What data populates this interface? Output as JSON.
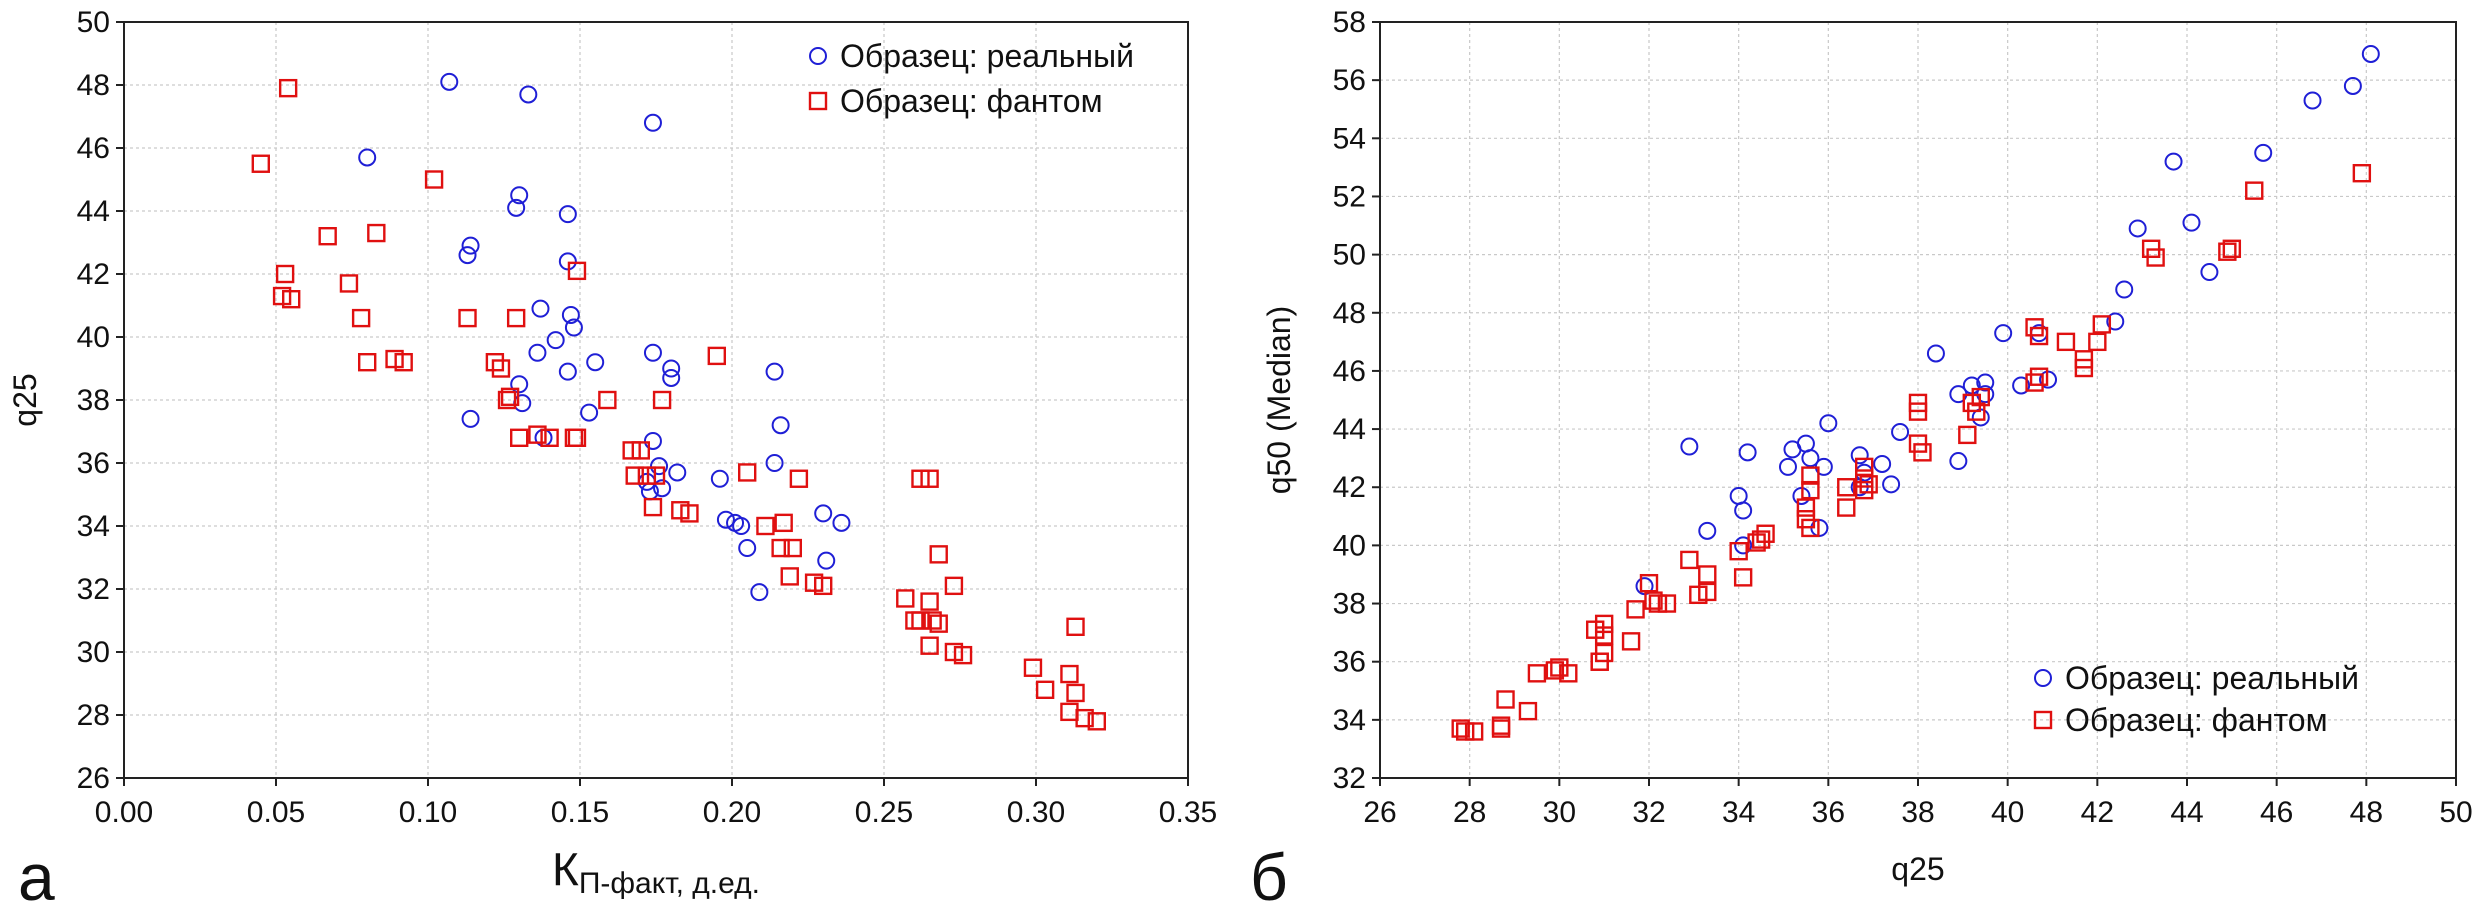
{
  "chart_data": [
    {
      "type": "scatter",
      "panel_label": "а",
      "title": "",
      "xlabel": "К",
      "xlabel_sub": "П-факт",
      "xlabel_unit": ", д.ед.",
      "ylabel": "q25",
      "xlim": [
        0.0,
        0.35
      ],
      "ylim": [
        26,
        50
      ],
      "x_ticks": [
        "0.00",
        "0.05",
        "0.10",
        "0.15",
        "0.20",
        "0.25",
        "0.30",
        "0.35"
      ],
      "y_ticks": [
        "26",
        "28",
        "30",
        "32",
        "34",
        "36",
        "38",
        "40",
        "42",
        "44",
        "46",
        "48",
        "50"
      ],
      "grid": true,
      "legend_position": "top-right",
      "series": [
        {
          "name": "Образец: реальный",
          "marker": "circle",
          "color": "#1f1fd6",
          "points": [
            [
              0.107,
              48.1
            ],
            [
              0.133,
              47.7
            ],
            [
              0.174,
              46.8
            ],
            [
              0.08,
              45.7
            ],
            [
              0.13,
              44.5
            ],
            [
              0.129,
              44.1
            ],
            [
              0.146,
              43.9
            ],
            [
              0.114,
              42.9
            ],
            [
              0.113,
              42.6
            ],
            [
              0.146,
              42.4
            ],
            [
              0.147,
              40.7
            ],
            [
              0.137,
              40.9
            ],
            [
              0.148,
              40.3
            ],
            [
              0.142,
              39.9
            ],
            [
              0.136,
              39.5
            ],
            [
              0.155,
              39.2
            ],
            [
              0.174,
              39.5
            ],
            [
              0.18,
              39.0
            ],
            [
              0.18,
              38.7
            ],
            [
              0.146,
              38.9
            ],
            [
              0.214,
              38.9
            ],
            [
              0.13,
              38.5
            ],
            [
              0.131,
              37.9
            ],
            [
              0.153,
              37.6
            ],
            [
              0.114,
              37.4
            ],
            [
              0.216,
              37.2
            ],
            [
              0.174,
              36.7
            ],
            [
              0.138,
              36.8
            ],
            [
              0.176,
              35.9
            ],
            [
              0.182,
              35.7
            ],
            [
              0.172,
              35.4
            ],
            [
              0.177,
              35.2
            ],
            [
              0.196,
              35.5
            ],
            [
              0.214,
              36.0
            ],
            [
              0.198,
              34.2
            ],
            [
              0.201,
              34.1
            ],
            [
              0.203,
              34.0
            ],
            [
              0.23,
              34.4
            ],
            [
              0.236,
              34.1
            ],
            [
              0.205,
              33.3
            ],
            [
              0.231,
              32.9
            ],
            [
              0.209,
              31.9
            ],
            [
              0.173,
              35.1
            ]
          ]
        },
        {
          "name": "Образец: фантом",
          "marker": "square",
          "color": "#e01010",
          "points": [
            [
              0.054,
              47.9
            ],
            [
              0.045,
              45.5
            ],
            [
              0.102,
              45.0
            ],
            [
              0.067,
              43.2
            ],
            [
              0.083,
              43.3
            ],
            [
              0.149,
              42.1
            ],
            [
              0.053,
              42.0
            ],
            [
              0.074,
              41.7
            ],
            [
              0.052,
              41.3
            ],
            [
              0.055,
              41.2
            ],
            [
              0.078,
              40.6
            ],
            [
              0.113,
              40.6
            ],
            [
              0.129,
              40.6
            ],
            [
              0.08,
              39.2
            ],
            [
              0.089,
              39.3
            ],
            [
              0.092,
              39.2
            ],
            [
              0.122,
              39.2
            ],
            [
              0.124,
              39.0
            ],
            [
              0.195,
              39.4
            ],
            [
              0.126,
              38.0
            ],
            [
              0.127,
              38.1
            ],
            [
              0.159,
              38.0
            ],
            [
              0.177,
              38.0
            ],
            [
              0.13,
              36.8
            ],
            [
              0.136,
              36.9
            ],
            [
              0.14,
              36.8
            ],
            [
              0.148,
              36.8
            ],
            [
              0.149,
              36.8
            ],
            [
              0.167,
              36.4
            ],
            [
              0.17,
              36.4
            ],
            [
              0.168,
              35.6
            ],
            [
              0.172,
              35.6
            ],
            [
              0.175,
              35.6
            ],
            [
              0.174,
              34.6
            ],
            [
              0.183,
              34.5
            ],
            [
              0.186,
              34.4
            ],
            [
              0.205,
              35.7
            ],
            [
              0.222,
              35.5
            ],
            [
              0.262,
              35.5
            ],
            [
              0.265,
              35.5
            ],
            [
              0.211,
              34.0
            ],
            [
              0.217,
              34.1
            ],
            [
              0.216,
              33.3
            ],
            [
              0.22,
              33.3
            ],
            [
              0.268,
              33.1
            ],
            [
              0.219,
              32.4
            ],
            [
              0.227,
              32.2
            ],
            [
              0.23,
              32.1
            ],
            [
              0.273,
              32.1
            ],
            [
              0.257,
              31.7
            ],
            [
              0.265,
              31.6
            ],
            [
              0.26,
              31.0
            ],
            [
              0.262,
              31.0
            ],
            [
              0.266,
              31.0
            ],
            [
              0.268,
              30.9
            ],
            [
              0.265,
              30.2
            ],
            [
              0.273,
              30.0
            ],
            [
              0.276,
              29.9
            ],
            [
              0.299,
              29.5
            ],
            [
              0.303,
              28.8
            ],
            [
              0.311,
              29.3
            ],
            [
              0.313,
              28.7
            ],
            [
              0.313,
              30.8
            ],
            [
              0.311,
              28.1
            ],
            [
              0.316,
              27.9
            ],
            [
              0.32,
              27.8
            ]
          ]
        }
      ]
    },
    {
      "type": "scatter",
      "panel_label": "б",
      "title": "",
      "xlabel": "q25",
      "ylabel": "q50 (Median)",
      "xlim": [
        26,
        50
      ],
      "ylim": [
        32,
        58
      ],
      "x_ticks": [
        "26",
        "28",
        "30",
        "32",
        "34",
        "36",
        "38",
        "40",
        "42",
        "44",
        "46",
        "48",
        "50"
      ],
      "y_ticks": [
        "32",
        "34",
        "36",
        "38",
        "40",
        "42",
        "44",
        "46",
        "48",
        "50",
        "52",
        "54",
        "56",
        "58"
      ],
      "grid": true,
      "legend_position": "bottom-right",
      "series": [
        {
          "name": "Образец: реальный",
          "marker": "circle",
          "color": "#1f1fd6",
          "points": [
            [
              48.1,
              56.9
            ],
            [
              47.7,
              55.8
            ],
            [
              46.8,
              55.3
            ],
            [
              45.7,
              53.5
            ],
            [
              43.7,
              53.2
            ],
            [
              44.1,
              51.1
            ],
            [
              42.9,
              50.9
            ],
            [
              44.5,
              49.4
            ],
            [
              42.6,
              48.8
            ],
            [
              42.4,
              47.7
            ],
            [
              39.9,
              47.3
            ],
            [
              40.7,
              47.3
            ],
            [
              38.4,
              46.6
            ],
            [
              40.9,
              45.7
            ],
            [
              40.3,
              45.5
            ],
            [
              39.5,
              45.6
            ],
            [
              39.2,
              45.5
            ],
            [
              39.5,
              45.2
            ],
            [
              38.9,
              45.2
            ],
            [
              39.4,
              44.4
            ],
            [
              37.6,
              43.9
            ],
            [
              36.0,
              44.2
            ],
            [
              35.5,
              43.5
            ],
            [
              36.7,
              43.1
            ],
            [
              35.2,
              43.3
            ],
            [
              34.2,
              43.2
            ],
            [
              32.9,
              43.4
            ],
            [
              38.9,
              42.9
            ],
            [
              37.2,
              42.8
            ],
            [
              35.9,
              42.7
            ],
            [
              35.1,
              42.7
            ],
            [
              36.8,
              42.5
            ],
            [
              34.0,
              41.7
            ],
            [
              34.1,
              41.2
            ],
            [
              37.4,
              42.1
            ],
            [
              33.3,
              40.5
            ],
            [
              34.1,
              40.0
            ],
            [
              35.8,
              40.6
            ],
            [
              31.9,
              38.6
            ],
            [
              35.4,
              41.7
            ],
            [
              36.7,
              42.0
            ],
            [
              35.6,
              43.0
            ]
          ]
        },
        {
          "name": "Образец: фантом",
          "marker": "square",
          "color": "#e01010",
          "points": [
            [
              47.9,
              52.8
            ],
            [
              45.5,
              52.2
            ],
            [
              43.2,
              50.2
            ],
            [
              43.3,
              49.9
            ],
            [
              45.0,
              50.2
            ],
            [
              44.9,
              50.1
            ],
            [
              40.6,
              47.5
            ],
            [
              40.7,
              47.2
            ],
            [
              42.1,
              47.6
            ],
            [
              42.0,
              47.0
            ],
            [
              41.3,
              47.0
            ],
            [
              41.7,
              46.4
            ],
            [
              41.7,
              46.1
            ],
            [
              40.6,
              45.6
            ],
            [
              40.7,
              45.8
            ],
            [
              39.4,
              45.1
            ],
            [
              39.2,
              44.9
            ],
            [
              39.3,
              44.6
            ],
            [
              39.1,
              43.8
            ],
            [
              38.0,
              44.9
            ],
            [
              38.0,
              44.6
            ],
            [
              38.0,
              43.5
            ],
            [
              38.1,
              43.2
            ],
            [
              36.8,
              42.7
            ],
            [
              36.8,
              42.3
            ],
            [
              36.9,
              42.1
            ],
            [
              36.8,
              41.9
            ],
            [
              35.6,
              42.4
            ],
            [
              35.6,
              41.9
            ],
            [
              35.5,
              41.3
            ],
            [
              35.5,
              40.9
            ],
            [
              35.6,
              40.6
            ],
            [
              36.4,
              42.0
            ],
            [
              36.4,
              41.3
            ],
            [
              34.6,
              40.4
            ],
            [
              34.5,
              40.2
            ],
            [
              34.4,
              40.1
            ],
            [
              34.0,
              39.8
            ],
            [
              34.1,
              38.9
            ],
            [
              33.3,
              39.0
            ],
            [
              33.3,
              38.4
            ],
            [
              33.1,
              38.3
            ],
            [
              32.4,
              38.0
            ],
            [
              32.2,
              38.0
            ],
            [
              32.1,
              38.1
            ],
            [
              32.0,
              38.7
            ],
            [
              31.7,
              37.8
            ],
            [
              31.6,
              36.7
            ],
            [
              32.9,
              39.5
            ],
            [
              31.0,
              36.9
            ],
            [
              31.0,
              36.3
            ],
            [
              30.9,
              36.0
            ],
            [
              31.0,
              37.3
            ],
            [
              30.8,
              37.1
            ],
            [
              30.2,
              35.6
            ],
            [
              30.0,
              35.8
            ],
            [
              29.9,
              35.7
            ],
            [
              29.5,
              35.6
            ],
            [
              29.3,
              34.3
            ],
            [
              28.8,
              34.7
            ],
            [
              28.7,
              33.8
            ],
            [
              28.1,
              33.6
            ],
            [
              27.9,
              33.6
            ],
            [
              27.8,
              33.7
            ],
            [
              28.7,
              33.7
            ],
            [
              30.9,
              36.0
            ]
          ]
        }
      ]
    }
  ]
}
